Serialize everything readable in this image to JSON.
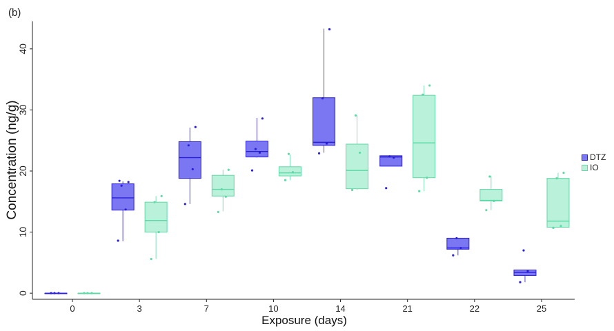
{
  "panel_label": "(b)",
  "chart_data": {
    "type": "box",
    "title": "",
    "xlabel": "Exposure (days)",
    "ylabel": "Concentration (ng/g)",
    "categories": [
      "0",
      "3",
      "7",
      "10",
      "14",
      "21",
      "22",
      "25"
    ],
    "ylim": [
      -1,
      44.5
    ],
    "yticks": [
      0,
      10,
      20,
      30,
      40
    ],
    "grid": false,
    "legend_position": "right",
    "series": [
      {
        "name": "DTZ",
        "color": "#2a20d8",
        "fill": "#7b76f2",
        "boxes": [
          {
            "whisker_low": 0.0,
            "q1": 0.0,
            "median": 0.0,
            "q3": 0.0,
            "whisker_high": 0.0,
            "points": [
              0.0,
              0.0,
              0.0
            ]
          },
          {
            "whisker_low": 8.5,
            "q1": 13.6,
            "median": 15.6,
            "q3": 17.9,
            "whisker_high": 18.3,
            "points": [
              8.6,
              13.7,
              17.6,
              18.2,
              18.4
            ]
          },
          {
            "whisker_low": 14.6,
            "q1": 18.8,
            "median": 22.2,
            "q3": 24.8,
            "whisker_high": 27.1,
            "points": [
              14.6,
              20.3,
              24.2,
              27.2
            ]
          },
          {
            "whisker_low": 22.2,
            "q1": 22.3,
            "median": 23.2,
            "q3": 24.9,
            "whisker_high": 28.7,
            "points": [
              20.1,
              23.0,
              23.6,
              28.6
            ]
          },
          {
            "whisker_low": 23.0,
            "q1": 24.2,
            "median": 24.7,
            "q3": 32.0,
            "whisker_high": 43.3,
            "points": [
              22.9,
              24.5,
              31.9,
              43.2
            ]
          },
          {
            "whisker_low": 20.8,
            "q1": 20.8,
            "median": 22.3,
            "q3": 22.5,
            "whisker_high": 22.5,
            "points": [
              17.2,
              22.2,
              22.4
            ]
          },
          {
            "whisker_low": 6.2,
            "q1": 7.2,
            "median": 7.4,
            "q3": 9.0,
            "whisker_high": 9.0,
            "points": [
              6.2,
              7.4,
              9.0
            ]
          },
          {
            "whisker_low": 1.8,
            "q1": 2.9,
            "median": 3.4,
            "q3": 3.8,
            "whisker_high": 3.8,
            "points": [
              1.8,
              3.6,
              7.0
            ]
          }
        ]
      },
      {
        "name": "IO",
        "color": "#5fd9a5",
        "fill": "#b9f1db",
        "boxes": [
          {
            "whisker_low": 0.0,
            "q1": 0.0,
            "median": 0.0,
            "q3": 0.0,
            "whisker_high": 0.0,
            "points": [
              0.0,
              0.0,
              0.0
            ]
          },
          {
            "whisker_low": 5.6,
            "q1": 10.0,
            "median": 11.9,
            "q3": 14.9,
            "whisker_high": 15.9,
            "points": [
              5.6,
              10.0,
              14.9,
              15.9
            ]
          },
          {
            "whisker_low": 13.4,
            "q1": 15.9,
            "median": 17.0,
            "q3": 19.3,
            "whisker_high": 20.2,
            "points": [
              13.3,
              15.8,
              17.0,
              20.2
            ]
          },
          {
            "whisker_low": 18.5,
            "q1": 19.2,
            "median": 19.7,
            "q3": 20.7,
            "whisker_high": 22.7,
            "points": [
              18.5,
              19.8,
              22.8
            ]
          },
          {
            "whisker_low": 16.9,
            "q1": 17.1,
            "median": 20.1,
            "q3": 24.4,
            "whisker_high": 29.1,
            "points": [
              16.9,
              23.0,
              29.1
            ]
          },
          {
            "whisker_low": 16.7,
            "q1": 18.9,
            "median": 24.6,
            "q3": 32.4,
            "whisker_high": 34.0,
            "points": [
              16.7,
              18.9,
              32.5,
              34.0
            ]
          },
          {
            "whisker_low": 13.6,
            "q1": 15.1,
            "median": 15.2,
            "q3": 17.0,
            "whisker_high": 19.2,
            "points": [
              13.6,
              15.1,
              19.1
            ]
          },
          {
            "whisker_low": 10.7,
            "q1": 10.8,
            "median": 11.8,
            "q3": 18.8,
            "whisker_high": 19.7,
            "points": [
              10.7,
              11.0,
              18.8,
              19.7
            ]
          }
        ]
      }
    ]
  }
}
